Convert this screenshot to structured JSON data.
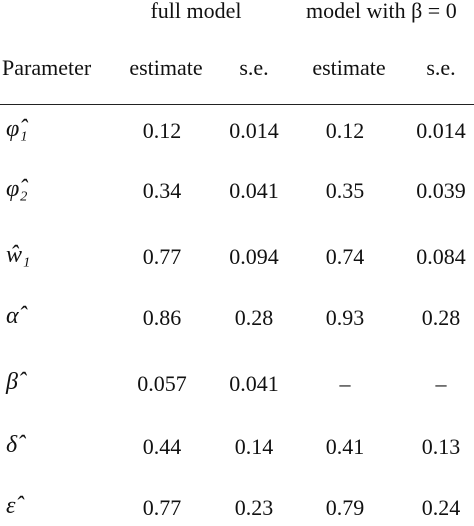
{
  "table": {
    "group_headers": [
      "full model",
      "model with β = 0"
    ],
    "columns": [
      "Parameter",
      "estimate",
      "s.e.",
      "estimate",
      "s.e."
    ],
    "rows": [
      {
        "param": "φ̂₁",
        "full_est": "0.12",
        "full_se": "0.014",
        "beta0_est": "0.12",
        "beta0_se": "0.014"
      },
      {
        "param": "φ̂₂",
        "full_est": "0.34",
        "full_se": "0.041",
        "beta0_est": "0.35",
        "beta0_se": "0.039"
      },
      {
        "param": "ŵ₁",
        "full_est": "0.77",
        "full_se": "0.094",
        "beta0_est": "0.74",
        "beta0_se": "0.084"
      },
      {
        "param": "α̂",
        "full_est": "0.86",
        "full_se": "0.28",
        "beta0_est": "0.93",
        "beta0_se": "0.28"
      },
      {
        "param": "β̂",
        "full_est": "0.057",
        "full_se": "0.041",
        "beta0_est": "–",
        "beta0_se": "–"
      },
      {
        "param": "δ̂",
        "full_est": "0.44",
        "full_se": "0.14",
        "beta0_est": "0.41",
        "beta0_se": "0.13"
      },
      {
        "param": "ε̂",
        "full_est": "0.77",
        "full_se": "0.23",
        "beta0_est": "0.79",
        "beta0_se": "0.24"
      }
    ]
  }
}
